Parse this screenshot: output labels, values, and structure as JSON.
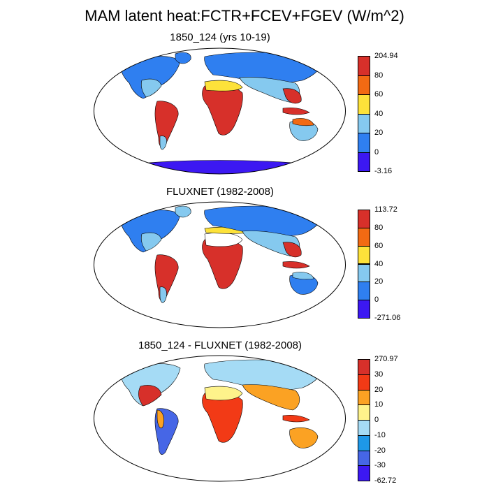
{
  "title": "MAM latent heat:FCTR+FCEV+FGEV (W/m^2)",
  "panels": [
    {
      "title": "1850_124 (yrs 10-19)",
      "colorbar": {
        "labels": [
          "204.94",
          "80",
          "60",
          "40",
          "20",
          "0",
          "-3.16"
        ],
        "colors": [
          "#d7302a",
          "#f26a13",
          "#fde23a",
          "#85c9ef",
          "#2f7ff0",
          "#3c18f2"
        ]
      }
    },
    {
      "title": "FLUXNET (1982-2008)",
      "colorbar": {
        "labels": [
          "113.72",
          "80",
          "60",
          "40",
          "20",
          "0",
          "-271.06"
        ],
        "colors": [
          "#d7302a",
          "#f26a13",
          "#fde23a",
          "#85c9ef",
          "#2f7ff0",
          "#3c18f2"
        ]
      }
    },
    {
      "title": "1850_124 - FLUXNET (1982-2008)",
      "colorbar": {
        "labels": [
          "270.97",
          "30",
          "20",
          "10",
          "0",
          "-10",
          "-20",
          "-30",
          "-62.72"
        ],
        "colors": [
          "#d7302a",
          "#f23a16",
          "#fba223",
          "#fef38b",
          "#a5dbf5",
          "#1e98e8",
          "#4666e6",
          "#3c18f2"
        ]
      }
    }
  ]
}
